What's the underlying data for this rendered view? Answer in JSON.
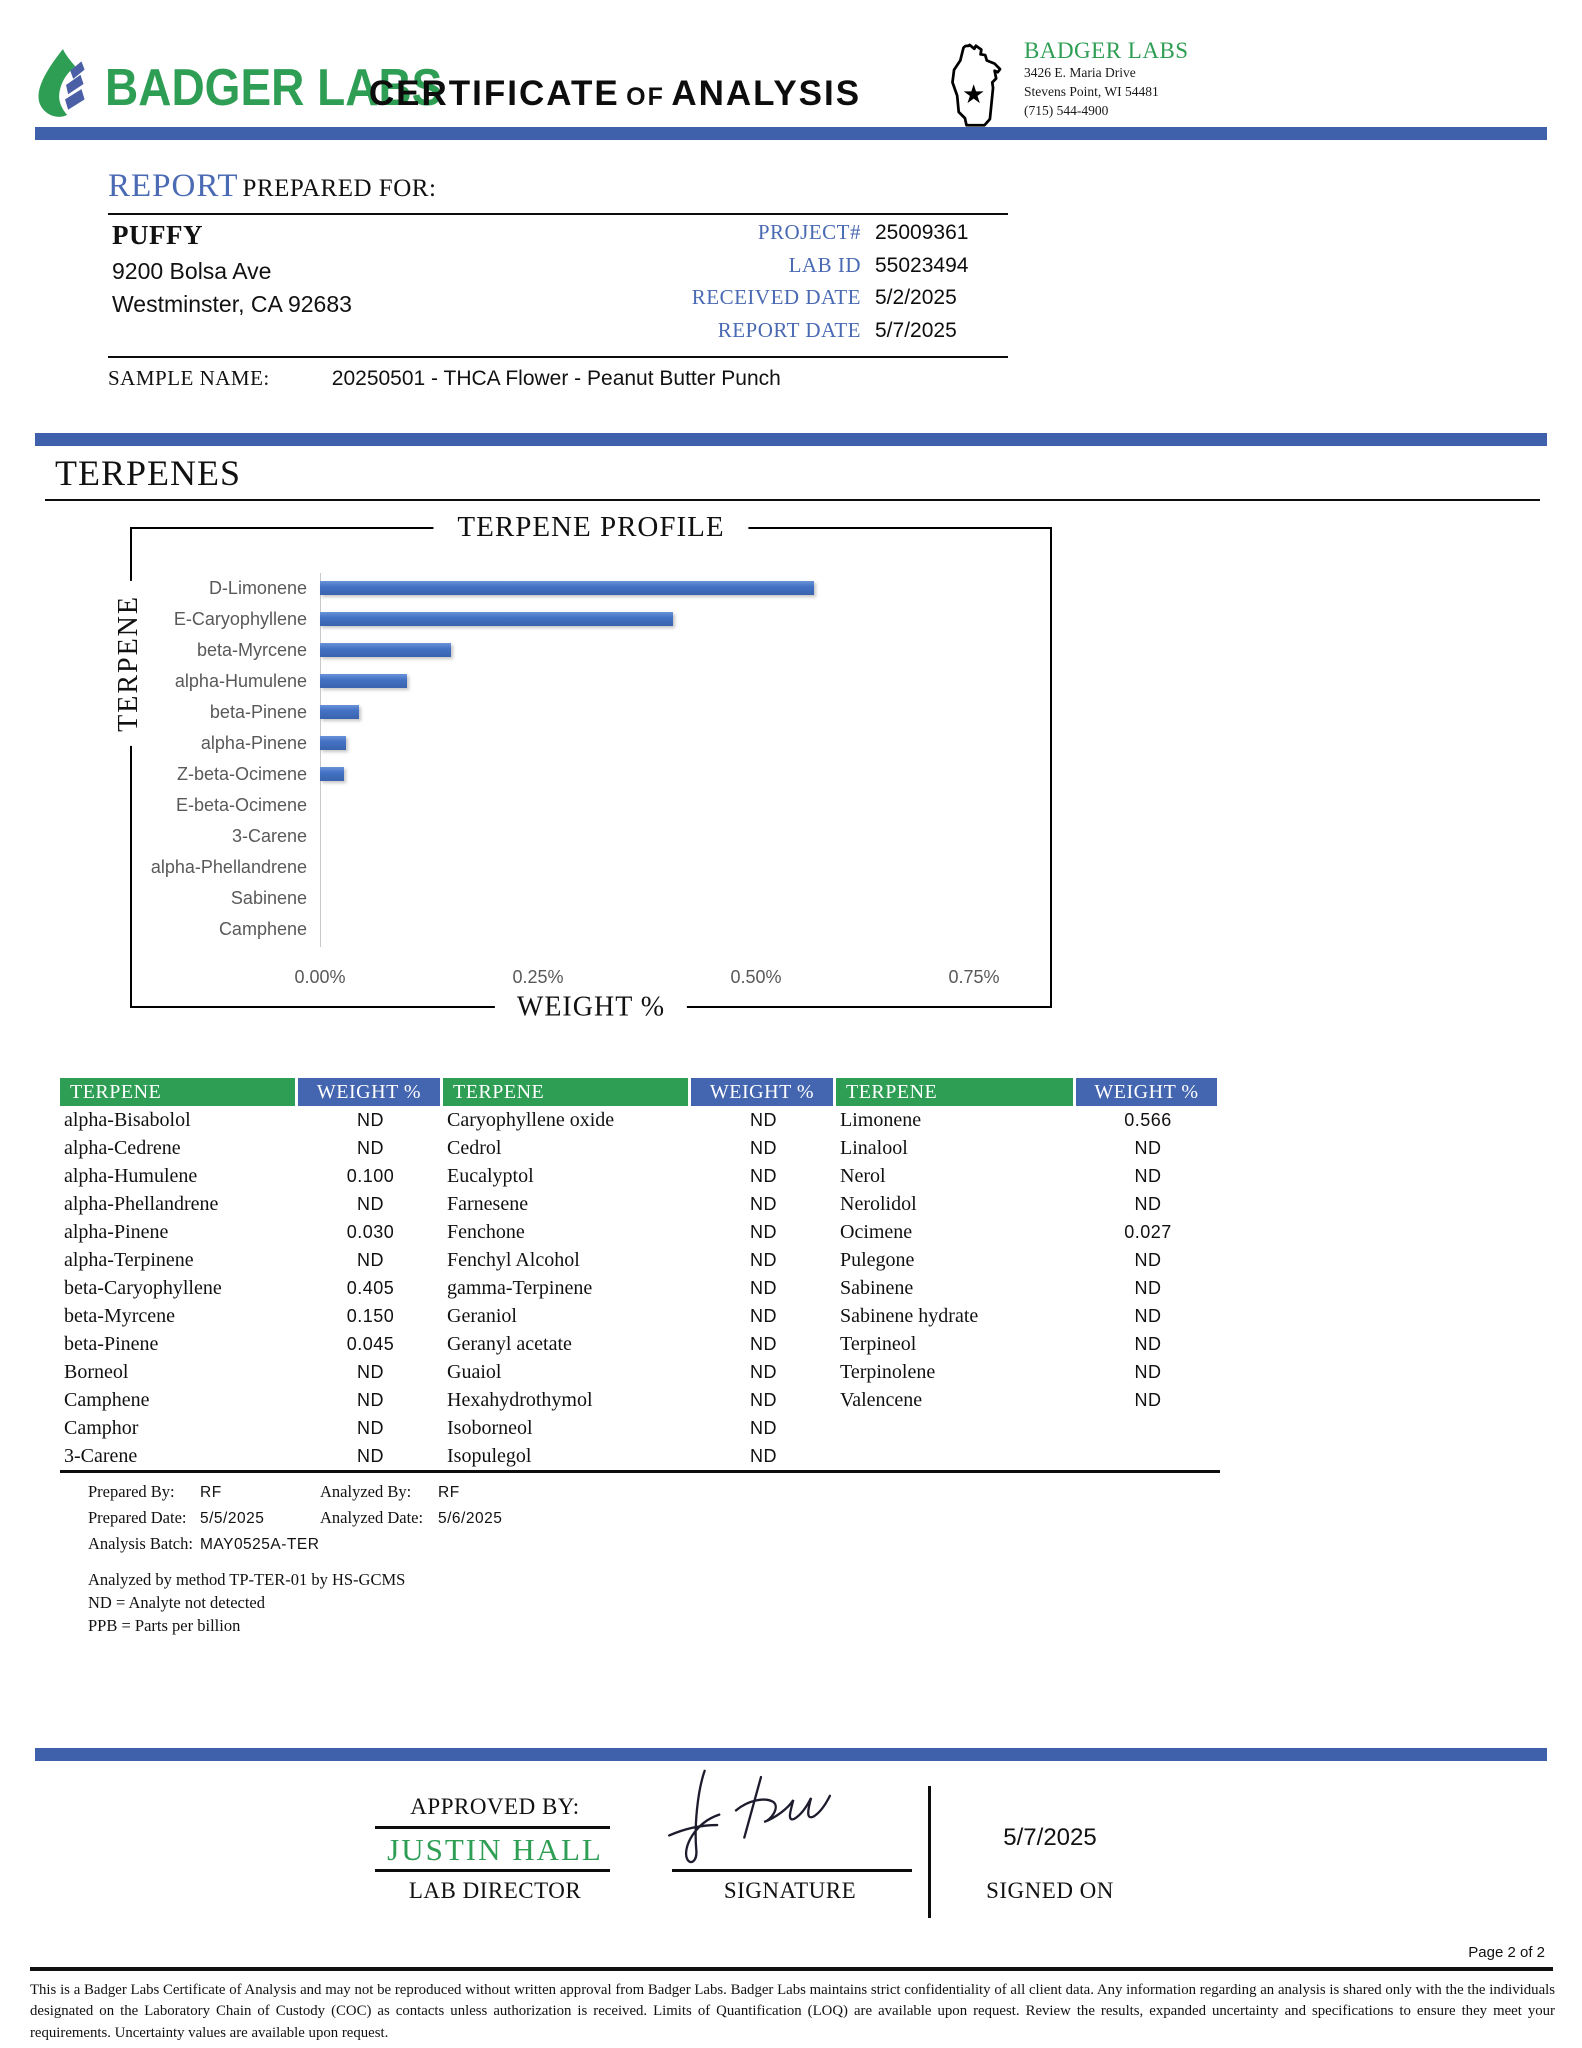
{
  "header": {
    "logo_text": "BADGER LABS",
    "certificate_title_part1": "CERTIFICATE",
    "certificate_title_part2": "OF",
    "certificate_title_part3": "ANALYSIS",
    "lab_name": "BADGER LABS",
    "address_line1": "3426 E. Maria Drive",
    "address_line2": "Stevens Point, WI 54481",
    "address_line3": "(715) 544-4900"
  },
  "report": {
    "title": "REPORT",
    "subtitle": "PREPARED FOR:",
    "client_name": "PUFFY",
    "client_address1": "9200 Bolsa Ave",
    "client_address2": "Westminster, CA 92683",
    "fields": [
      {
        "label": "PROJECT#",
        "value": "25009361"
      },
      {
        "label": "LAB ID",
        "value": "55023494"
      },
      {
        "label": "RECEIVED DATE",
        "value": "5/2/2025"
      },
      {
        "label": "REPORT DATE",
        "value": "5/7/2025"
      }
    ],
    "sample_name_label": "SAMPLE NAME:",
    "sample_name": "20250501 - THCA Flower - Peanut Butter Punch"
  },
  "section_title": "TERPENES",
  "chart_data": {
    "type": "bar",
    "orientation": "horizontal",
    "title": "TERPENE PROFILE",
    "xlabel": "WEIGHT %",
    "ylabel": "TERPENE",
    "categories": [
      "D-Limonene",
      "E-Caryophyllene",
      "beta-Myrcene",
      "alpha-Humulene",
      "beta-Pinene",
      "alpha-Pinene",
      "Z-beta-Ocimene",
      "E-beta-Ocimene",
      "3-Carene",
      "alpha-Phellandrene",
      "Sabinene",
      "Camphene"
    ],
    "values": [
      0.566,
      0.405,
      0.15,
      0.1,
      0.045,
      0.03,
      0.027,
      0,
      0,
      0,
      0,
      0
    ],
    "value_unit": "%",
    "xlim": [
      0,
      0.84
    ],
    "tick_labels": [
      "0.00%",
      "0.25%",
      "0.50%",
      "0.75%"
    ],
    "tick_values": [
      0,
      0.25,
      0.5,
      0.75
    ],
    "grid": false,
    "bar_color": "#4472c4"
  },
  "table": {
    "headers": [
      "TERPENE",
      "WEIGHT %"
    ],
    "groups": [
      {
        "rows": [
          [
            "alpha-Bisabolol",
            "ND"
          ],
          [
            "alpha-Cedrene",
            "ND"
          ],
          [
            "alpha-Humulene",
            "0.100"
          ],
          [
            "alpha-Phellandrene",
            "ND"
          ],
          [
            "alpha-Pinene",
            "0.030"
          ],
          [
            "alpha-Terpinene",
            "ND"
          ],
          [
            "beta-Caryophyllene",
            "0.405"
          ],
          [
            "beta-Myrcene",
            "0.150"
          ],
          [
            "beta-Pinene",
            "0.045"
          ],
          [
            "Borneol",
            "ND"
          ],
          [
            "Camphene",
            "ND"
          ],
          [
            "Camphor",
            "ND"
          ],
          [
            "3-Carene",
            "ND"
          ]
        ]
      },
      {
        "rows": [
          [
            "Caryophyllene oxide",
            "ND"
          ],
          [
            "Cedrol",
            "ND"
          ],
          [
            "Eucalyptol",
            "ND"
          ],
          [
            "Farnesene",
            "ND"
          ],
          [
            "Fenchone",
            "ND"
          ],
          [
            "Fenchyl Alcohol",
            "ND"
          ],
          [
            "gamma-Terpinene",
            "ND"
          ],
          [
            "Geraniol",
            "ND"
          ],
          [
            "Geranyl acetate",
            "ND"
          ],
          [
            "Guaiol",
            "ND"
          ],
          [
            "Hexahydrothymol",
            "ND"
          ],
          [
            "Isoborneol",
            "ND"
          ],
          [
            "Isopulegol",
            "ND"
          ]
        ]
      },
      {
        "rows": [
          [
            "Limonene",
            "0.566"
          ],
          [
            "Linalool",
            "ND"
          ],
          [
            "Nerol",
            "ND"
          ],
          [
            "Nerolidol",
            "ND"
          ],
          [
            "Ocimene",
            "0.027"
          ],
          [
            "Pulegone",
            "ND"
          ],
          [
            "Sabinene",
            "ND"
          ],
          [
            "Sabinene hydrate",
            "ND"
          ],
          [
            "Terpineol",
            "ND"
          ],
          [
            "Terpinolene",
            "ND"
          ],
          [
            "Valencene",
            "ND"
          ]
        ]
      }
    ]
  },
  "notes": {
    "prepared_by_label": "Prepared By:",
    "prepared_by": "RF",
    "analyzed_by_label": "Analyzed By:",
    "analyzed_by": "RF",
    "prepared_date_label": "Prepared Date:",
    "prepared_date": "5/5/2025",
    "analyzed_date_label": "Analyzed Date:",
    "analyzed_date": "5/6/2025",
    "analysis_batch_label": "Analysis Batch:",
    "analysis_batch": "MAY0525A-TER",
    "method_note": "Analyzed by method TP-TER-01 by HS-GCMS",
    "nd_note": "ND = Analyte not detected",
    "ppb_note": "PPB = Parts per billion"
  },
  "approval": {
    "approved_by_label": "APPROVED BY:",
    "approver_name": "JUSTIN HALL",
    "approver_title": "LAB DIRECTOR",
    "signature_label": "SIGNATURE",
    "signed_on_label": "SIGNED ON",
    "signed_date": "5/7/2025"
  },
  "footer": {
    "page_label": "Page 2 of 2",
    "disclaimer": "This is a Badger Labs Certificate of Analysis and may not be reproduced without written approval from Badger Labs. Badger Labs maintains strict confidentiality of all client data. Any information regarding an analysis is shared only with the the individuals designated on the Laboratory Chain of Custody (COC) as contacts unless authorization is received. Limits of Quantification (LOQ) are available upon request. Review the results, expanded uncertainty and specifications to ensure they meet your requirements. Uncertainty values are available upon request."
  },
  "colors": {
    "accent_bar_blue": "#3f61ac",
    "table_header_green": "#2d9e54",
    "table_header_blue": "#4465af",
    "chart_bar_blue": "#4472c4",
    "field_label_blue": "#4a6ab3",
    "brand_green": "#2f9e55"
  }
}
